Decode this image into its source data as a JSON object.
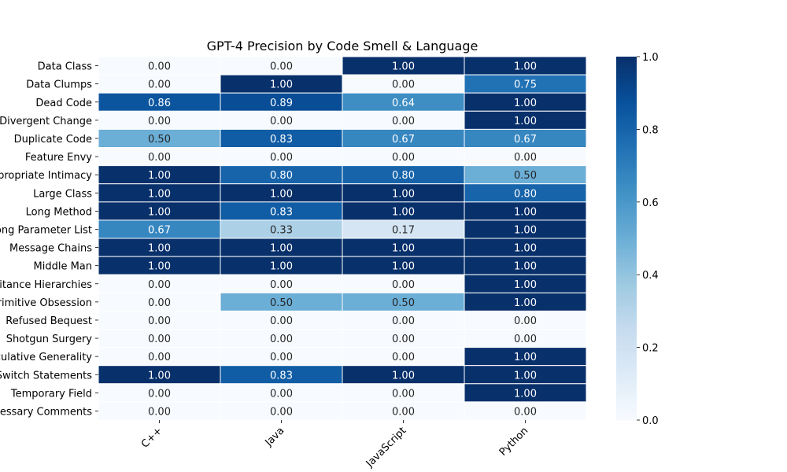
{
  "chart_data": {
    "type": "heatmap",
    "title": "GPT-4 Precision by Code Smell & Language",
    "xlabel": "",
    "ylabel": "",
    "columns": [
      "C++",
      "Java",
      "JavaScript",
      "Python"
    ],
    "rows": [
      "Data Class",
      "Data Clumps",
      "Dead Code",
      "Divergent Change",
      "Duplicate Code",
      "Feature Envy",
      "Inappropriate Intimacy",
      "Large Class",
      "Long Method",
      "Long Parameter List",
      "Message Chains",
      "Middle Man",
      "Parallel Inheritance Hierarchies",
      "Primitive Obsession",
      "Refused Bequest",
      "Shotgun Surgery",
      "Speculative Generality",
      "Switch Statements",
      "Temporary Field",
      "Unnecessary Comments"
    ],
    "values": [
      [
        0.0,
        0.0,
        1.0,
        1.0
      ],
      [
        0.0,
        1.0,
        0.0,
        0.75
      ],
      [
        0.86,
        0.89,
        0.64,
        1.0
      ],
      [
        0.0,
        0.0,
        0.0,
        1.0
      ],
      [
        0.5,
        0.83,
        0.67,
        0.67
      ],
      [
        0.0,
        0.0,
        0.0,
        0.0
      ],
      [
        1.0,
        0.8,
        0.8,
        0.5
      ],
      [
        1.0,
        1.0,
        1.0,
        0.8
      ],
      [
        1.0,
        0.83,
        1.0,
        1.0
      ],
      [
        0.67,
        0.33,
        0.17,
        1.0
      ],
      [
        1.0,
        1.0,
        1.0,
        1.0
      ],
      [
        1.0,
        1.0,
        1.0,
        1.0
      ],
      [
        0.0,
        0.0,
        0.0,
        1.0
      ],
      [
        0.0,
        0.5,
        0.5,
        1.0
      ],
      [
        0.0,
        0.0,
        0.0,
        0.0
      ],
      [
        0.0,
        0.0,
        0.0,
        0.0
      ],
      [
        0.0,
        0.0,
        0.0,
        1.0
      ],
      [
        1.0,
        0.83,
        1.0,
        1.0
      ],
      [
        0.0,
        0.0,
        0.0,
        1.0
      ],
      [
        0.0,
        0.0,
        0.0,
        0.0
      ]
    ],
    "value_format": "0.00",
    "colormap": "Blues",
    "vmin": 0,
    "vmax": 1,
    "colorbar_ticks": [
      "0.0",
      "0.2",
      "0.4",
      "0.6",
      "0.8",
      "1.0"
    ],
    "x_tick_rotation_deg": 45
  }
}
